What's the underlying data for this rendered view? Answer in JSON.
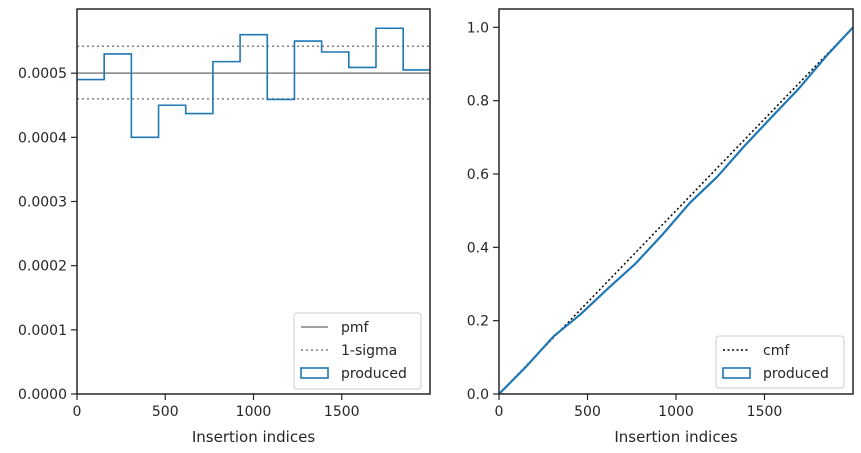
{
  "chart_data": [
    {
      "type": "histogram",
      "xlabel": "Insertion indices",
      "ylabel": "",
      "xlim": [
        0,
        2000
      ],
      "ylim": [
        0,
        0.0006
      ],
      "xticks": [
        0,
        500,
        1000,
        1500
      ],
      "yticks": [
        0,
        0.0001,
        0.0002,
        0.0003,
        0.0004,
        0.0005
      ],
      "ytick_labels": [
        "0.0000",
        "0.0001",
        "0.0002",
        "0.0003",
        "0.0004",
        "0.0005"
      ],
      "xtick_labels": [
        "0",
        "500",
        "1000",
        "1500"
      ],
      "grid": false,
      "legend_position": "bottom-right",
      "bin_edges": [
        0,
        154,
        308,
        462,
        616,
        770,
        924,
        1078,
        1232,
        1386,
        1540,
        1694,
        1848,
        2000
      ],
      "values": [
        0.00049,
        0.00053,
        0.0004,
        0.00045,
        0.000437,
        0.000518,
        0.00056,
        0.000459,
        0.00055,
        0.000533,
        0.000509,
        0.00057,
        0.000505
      ],
      "pmf": 0.0005,
      "sigma_band": [
        0.00046,
        0.000542
      ],
      "legend": [
        {
          "label": "pmf",
          "color": "#808080",
          "style": "solid"
        },
        {
          "label": "1-sigma",
          "color": "#808080",
          "style": "dotted"
        },
        {
          "label": "produced",
          "color": "#1f77b4",
          "style": "patch"
        }
      ]
    },
    {
      "type": "line",
      "xlabel": "Insertion indices",
      "ylabel": "",
      "xlim": [
        0,
        2000
      ],
      "ylim": [
        0,
        1.05
      ],
      "xticks": [
        0,
        500,
        1000,
        1500
      ],
      "yticks": [
        0,
        0.2,
        0.4,
        0.6,
        0.8,
        1.0
      ],
      "ytick_labels": [
        "0.0",
        "0.2",
        "0.4",
        "0.6",
        "0.8",
        "1.0"
      ],
      "xtick_labels": [
        "0",
        "500",
        "1000",
        "1500"
      ],
      "grid": false,
      "legend_position": "bottom-right",
      "series": [
        {
          "name": "cmf",
          "x": [
            0,
            2000
          ],
          "y": [
            0,
            1.0
          ],
          "color": "#000000",
          "style": "dotted"
        },
        {
          "name": "produced",
          "color": "#1f77b4",
          "style": "solid",
          "x": [
            0,
            154,
            308,
            462,
            616,
            770,
            924,
            1078,
            1232,
            1386,
            1540,
            1694,
            1848,
            2000
          ],
          "y": [
            0,
            0.075,
            0.157,
            0.218,
            0.288,
            0.355,
            0.435,
            0.521,
            0.592,
            0.676,
            0.755,
            0.833,
            0.921,
            1.0
          ]
        }
      ],
      "legend": [
        {
          "label": "cmf",
          "color": "#000000",
          "style": "dotted"
        },
        {
          "label": "produced",
          "color": "#1f77b4",
          "style": "patch"
        }
      ]
    }
  ]
}
